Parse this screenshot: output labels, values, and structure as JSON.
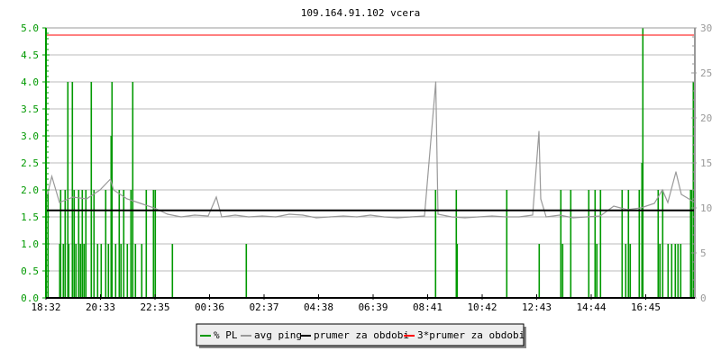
{
  "chart_data": {
    "type": "bar+line",
    "title": "109.164.91.102 vcera",
    "grid": true,
    "legend_placement": "bottom-center",
    "x_ticks": [
      "18:32",
      "20:33",
      "22:35",
      "00:36",
      "02:37",
      "04:38",
      "06:39",
      "08:41",
      "10:42",
      "12:43",
      "14:44",
      "16:45"
    ],
    "x_range": [
      "18:32",
      "18:32"
    ],
    "y_left": {
      "range": [
        0,
        5.0
      ],
      "ticks": [
        "0.0",
        "0.5",
        "1.0",
        "1.5",
        "2.0",
        "2.5",
        "3.0",
        "3.5",
        "4.0",
        "4.5",
        "5.0"
      ],
      "color": "#009900"
    },
    "y_right": {
      "range": [
        0,
        30
      ],
      "ticks": [
        "0",
        "5",
        "10",
        "15",
        "20",
        "25",
        "30"
      ],
      "color": "#999999"
    },
    "legend": [
      {
        "label": "% PL",
        "color": "#009900"
      },
      {
        "label": "avg ping",
        "color": "#999999"
      },
      {
        "label": "prumer za obdobi",
        "color": "#000000"
      },
      {
        "label": "3*prumer za obdobi",
        "color": "#ff0000"
      }
    ],
    "series": [
      {
        "name": "% PL",
        "axis": "left",
        "kind": "bar",
        "color": "#009900",
        "points": [
          [
            "18:36",
            2.0
          ],
          [
            "19:02",
            1.0
          ],
          [
            "19:04",
            2.0
          ],
          [
            "19:10",
            1.0
          ],
          [
            "19:14",
            2.0
          ],
          [
            "19:20",
            4.0
          ],
          [
            "19:22",
            1.0
          ],
          [
            "19:30",
            4.0
          ],
          [
            "19:34",
            2.0
          ],
          [
            "19:38",
            1.0
          ],
          [
            "19:44",
            2.0
          ],
          [
            "19:48",
            1.0
          ],
          [
            "19:52",
            2.0
          ],
          [
            "19:56",
            1.0
          ],
          [
            "20:00",
            2.0
          ],
          [
            "20:12",
            4.0
          ],
          [
            "20:18",
            2.0
          ],
          [
            "20:26",
            1.0
          ],
          [
            "20:34",
            1.0
          ],
          [
            "20:44",
            2.0
          ],
          [
            "20:50",
            1.0
          ],
          [
            "20:56",
            3.0
          ],
          [
            "20:58",
            4.0
          ],
          [
            "21:06",
            1.0
          ],
          [
            "21:14",
            2.0
          ],
          [
            "21:18",
            1.0
          ],
          [
            "21:24",
            2.0
          ],
          [
            "21:32",
            1.0
          ],
          [
            "21:40",
            2.0
          ],
          [
            "21:44",
            4.0
          ],
          [
            "21:50",
            1.0
          ],
          [
            "22:04",
            1.0
          ],
          [
            "22:14",
            2.0
          ],
          [
            "22:30",
            2.0
          ],
          [
            "22:34",
            2.0
          ],
          [
            "23:12",
            1.0
          ],
          [
            "01:56",
            1.0
          ],
          [
            "08:56",
            2.0
          ],
          [
            "09:42",
            2.0
          ],
          [
            "09:44",
            1.0
          ],
          [
            "11:34",
            2.0
          ],
          [
            "12:46",
            1.0
          ],
          [
            "13:34",
            2.0
          ],
          [
            "13:38",
            1.0
          ],
          [
            "13:56",
            2.0
          ],
          [
            "14:36",
            2.0
          ],
          [
            "14:50",
            2.0
          ],
          [
            "14:54",
            1.0
          ],
          [
            "15:02",
            2.0
          ],
          [
            "15:50",
            2.0
          ],
          [
            "15:58",
            1.0
          ],
          [
            "16:04",
            2.0
          ],
          [
            "16:08",
            1.0
          ],
          [
            "16:28",
            2.0
          ],
          [
            "16:34",
            2.5
          ],
          [
            "16:36",
            5.0
          ],
          [
            "17:10",
            2.0
          ],
          [
            "17:14",
            1.0
          ],
          [
            "17:20",
            2.0
          ],
          [
            "17:32",
            1.0
          ],
          [
            "17:40",
            1.0
          ],
          [
            "17:48",
            1.0
          ],
          [
            "17:54",
            1.0
          ],
          [
            "18:00",
            1.0
          ],
          [
            "18:22",
            2.0
          ],
          [
            "18:24",
            2.0
          ],
          [
            "18:28",
            4.0
          ]
        ]
      },
      {
        "name": "avg ping",
        "axis": "right",
        "kind": "line",
        "color": "#999999",
        "points": [
          [
            "18:32",
            10.8
          ],
          [
            "18:45",
            13.5
          ],
          [
            "19:02",
            10.6
          ],
          [
            "19:32",
            11.2
          ],
          [
            "20:02",
            11.0
          ],
          [
            "20:32",
            12.0
          ],
          [
            "20:55",
            13.2
          ],
          [
            "21:02",
            12.0
          ],
          [
            "21:32",
            11.0
          ],
          [
            "22:02",
            10.5
          ],
          [
            "22:32",
            10.0
          ],
          [
            "23:02",
            9.3
          ],
          [
            "23:32",
            9.0
          ],
          [
            "00:02",
            9.2
          ],
          [
            "00:32",
            9.1
          ],
          [
            "00:50",
            11.2
          ],
          [
            "01:02",
            9.0
          ],
          [
            "01:32",
            9.2
          ],
          [
            "02:02",
            9.0
          ],
          [
            "02:32",
            9.1
          ],
          [
            "03:02",
            9.0
          ],
          [
            "03:32",
            9.3
          ],
          [
            "04:02",
            9.2
          ],
          [
            "04:32",
            8.9
          ],
          [
            "05:02",
            9.0
          ],
          [
            "05:32",
            9.1
          ],
          [
            "06:02",
            9.0
          ],
          [
            "06:32",
            9.2
          ],
          [
            "07:02",
            9.0
          ],
          [
            "07:32",
            8.9
          ],
          [
            "08:02",
            9.0
          ],
          [
            "08:32",
            9.1
          ],
          [
            "08:57",
            24.0
          ],
          [
            "09:02",
            9.3
          ],
          [
            "09:32",
            9.0
          ],
          [
            "10:02",
            8.9
          ],
          [
            "10:32",
            9.0
          ],
          [
            "11:02",
            9.1
          ],
          [
            "11:32",
            9.0
          ],
          [
            "12:02",
            9.0
          ],
          [
            "12:32",
            9.2
          ],
          [
            "12:46",
            18.5
          ],
          [
            "12:50",
            11.0
          ],
          [
            "13:02",
            9.0
          ],
          [
            "13:32",
            9.2
          ],
          [
            "14:02",
            8.9
          ],
          [
            "14:32",
            9.0
          ],
          [
            "15:02",
            9.1
          ],
          [
            "15:32",
            10.2
          ],
          [
            "16:02",
            9.8
          ],
          [
            "16:32",
            10.0
          ],
          [
            "17:02",
            10.5
          ],
          [
            "17:20",
            12.0
          ],
          [
            "17:32",
            10.6
          ],
          [
            "17:50",
            14.0
          ],
          [
            "18:02",
            11.5
          ],
          [
            "18:32",
            10.6
          ]
        ]
      },
      {
        "name": "prumer za obdobi",
        "axis": "right",
        "kind": "hline",
        "value": 9.73,
        "color": "#000000"
      },
      {
        "name": "3*prumer za obdobi",
        "axis": "right",
        "kind": "hline",
        "value": 29.2,
        "color": "#ff0000"
      }
    ]
  }
}
